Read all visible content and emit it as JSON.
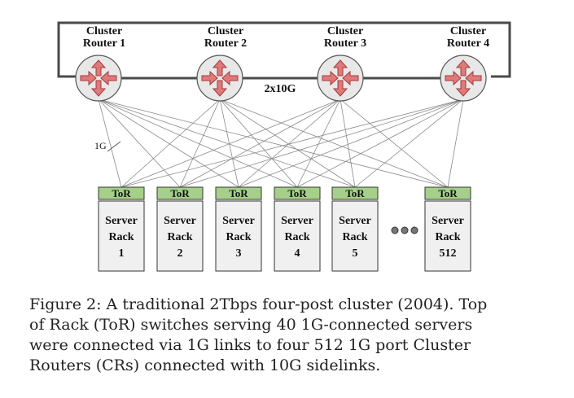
{
  "diagram": {
    "routers": [
      {
        "line1": "Cluster",
        "line2": "Router 1"
      },
      {
        "line1": "Cluster",
        "line2": "Router 2"
      },
      {
        "line1": "Cluster",
        "line2": "Router 3"
      },
      {
        "line1": "Cluster",
        "line2": "Router 4"
      }
    ],
    "sidelink_label": "2x10G",
    "uplink_label": "1G",
    "racks": [
      {
        "tor": "ToR",
        "line1": "Server",
        "line2": "Rack",
        "line3": "1"
      },
      {
        "tor": "ToR",
        "line1": "Server",
        "line2": "Rack",
        "line3": "2"
      },
      {
        "tor": "ToR",
        "line1": "Server",
        "line2": "Rack",
        "line3": "3"
      },
      {
        "tor": "ToR",
        "line1": "Server",
        "line2": "Rack",
        "line3": "4"
      },
      {
        "tor": "ToR",
        "line1": "Server",
        "line2": "Rack",
        "line3": "5"
      },
      {
        "tor": "ToR",
        "line1": "Server",
        "line2": "Rack",
        "line3": "512"
      }
    ],
    "colors": {
      "router_fill": "#e8e8e8",
      "arrow_fill": "#e07a7a",
      "arrow_stroke": "#a33a3a",
      "tor_fill": "#a6d08a",
      "rack_fill": "#f0f0f0",
      "link_color": "#8a8a8a",
      "ring_color": "#4a4a4a"
    }
  },
  "caption": {
    "lines": [
      "Figure 2: A traditional 2Tbps four-post cluster (2004). Top",
      "of Rack (ToR) switches serving 40 1G-connected servers",
      "were connected via 1G links to four 512 1G port Cluster",
      "Routers (CRs) connected with 10G sidelinks."
    ]
  }
}
